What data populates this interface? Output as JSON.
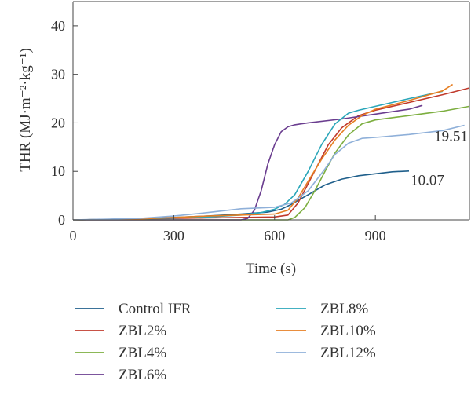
{
  "chart_data": {
    "type": "line",
    "xlabel": "Time (s)",
    "ylabel": "THR (MJ·m⁻²·kg⁻¹)",
    "xlim": [
      0,
      1180
    ],
    "ylim": [
      0,
      45
    ],
    "xticks": [
      "0",
      "300",
      "600",
      "900"
    ],
    "yticks": [
      "0",
      "10",
      "20",
      "30",
      "40"
    ],
    "grid": false,
    "legend_placement": "below",
    "annotations": [
      {
        "text": "19.51",
        "x": 1075,
        "y": 16.3
      },
      {
        "text": "10.07",
        "x": 1005,
        "y": 7.2
      }
    ],
    "series": [
      {
        "name": "Control IFR",
        "color": "#1f5f8b",
        "x": [
          0,
          100,
          200,
          300,
          400,
          500,
          580,
          620,
          650,
          680,
          700,
          750,
          800,
          850,
          900,
          950,
          1000
        ],
        "y": [
          0,
          0.1,
          0.3,
          0.5,
          0.8,
          1.2,
          1.6,
          2.2,
          3.2,
          4.4,
          5.2,
          7.2,
          8.4,
          9.1,
          9.5,
          9.9,
          10.07
        ]
      },
      {
        "name": "ZBL2%",
        "color": "#c0392b",
        "x": [
          0,
          100,
          200,
          300,
          400,
          500,
          600,
          640,
          670,
          700,
          730,
          760,
          800,
          850,
          900,
          1000,
          1100,
          1180
        ],
        "y": [
          0,
          0.1,
          0.2,
          0.3,
          0.4,
          0.5,
          0.6,
          1.0,
          3.5,
          7.5,
          11.5,
          15.5,
          19.0,
          21.5,
          22.6,
          24.2,
          25.8,
          27.2
        ]
      },
      {
        "name": "ZBL4%",
        "color": "#7cae3f",
        "x": [
          0,
          300,
          500,
          600,
          640,
          660,
          690,
          720,
          750,
          780,
          820,
          860,
          900,
          1000,
          1100,
          1180
        ],
        "y": [
          0,
          0,
          0,
          0,
          0,
          0.5,
          2.5,
          6.0,
          10.0,
          13.8,
          17.5,
          19.8,
          20.6,
          21.5,
          22.4,
          23.4
        ]
      },
      {
        "name": "ZBL6%",
        "color": "#6a3d8f",
        "x": [
          0,
          300,
          500,
          520,
          540,
          560,
          580,
          600,
          620,
          640,
          660,
          700,
          800,
          900,
          1000,
          1040
        ],
        "y": [
          0,
          0,
          0,
          0.3,
          2.0,
          6.0,
          11.5,
          15.5,
          18.2,
          19.2,
          19.6,
          20.0,
          20.8,
          21.8,
          22.8,
          23.6
        ]
      },
      {
        "name": "ZBL8%",
        "color": "#2aa6b9",
        "x": [
          0,
          200,
          400,
          500,
          560,
          600,
          630,
          660,
          700,
          740,
          780,
          820,
          850,
          900,
          950,
          1000,
          1100
        ],
        "y": [
          0,
          0.2,
          0.6,
          1.0,
          1.5,
          2.2,
          3.2,
          5.2,
          10.0,
          15.5,
          19.8,
          22.0,
          22.6,
          23.4,
          24.2,
          25.0,
          26.5
        ]
      },
      {
        "name": "ZBL10%",
        "color": "#e67e22",
        "x": [
          0,
          200,
          300,
          400,
          500,
          600,
          640,
          670,
          700,
          740,
          780,
          820,
          860,
          900,
          1000,
          1100,
          1130
        ],
        "y": [
          0,
          0.2,
          0.5,
          0.8,
          1.0,
          1.2,
          2.0,
          4.5,
          8.0,
          12.5,
          16.5,
          19.5,
          21.5,
          22.8,
          24.6,
          26.6,
          27.9
        ]
      },
      {
        "name": "ZBL12%",
        "color": "#8fb0d9",
        "x": [
          0,
          200,
          300,
          400,
          500,
          600,
          650,
          700,
          750,
          780,
          820,
          860,
          900,
          1000,
          1100,
          1165
        ],
        "y": [
          0,
          0.3,
          0.8,
          1.5,
          2.3,
          2.6,
          3.5,
          6.0,
          10.5,
          13.5,
          15.8,
          16.8,
          17.0,
          17.6,
          18.4,
          19.51
        ]
      }
    ]
  }
}
